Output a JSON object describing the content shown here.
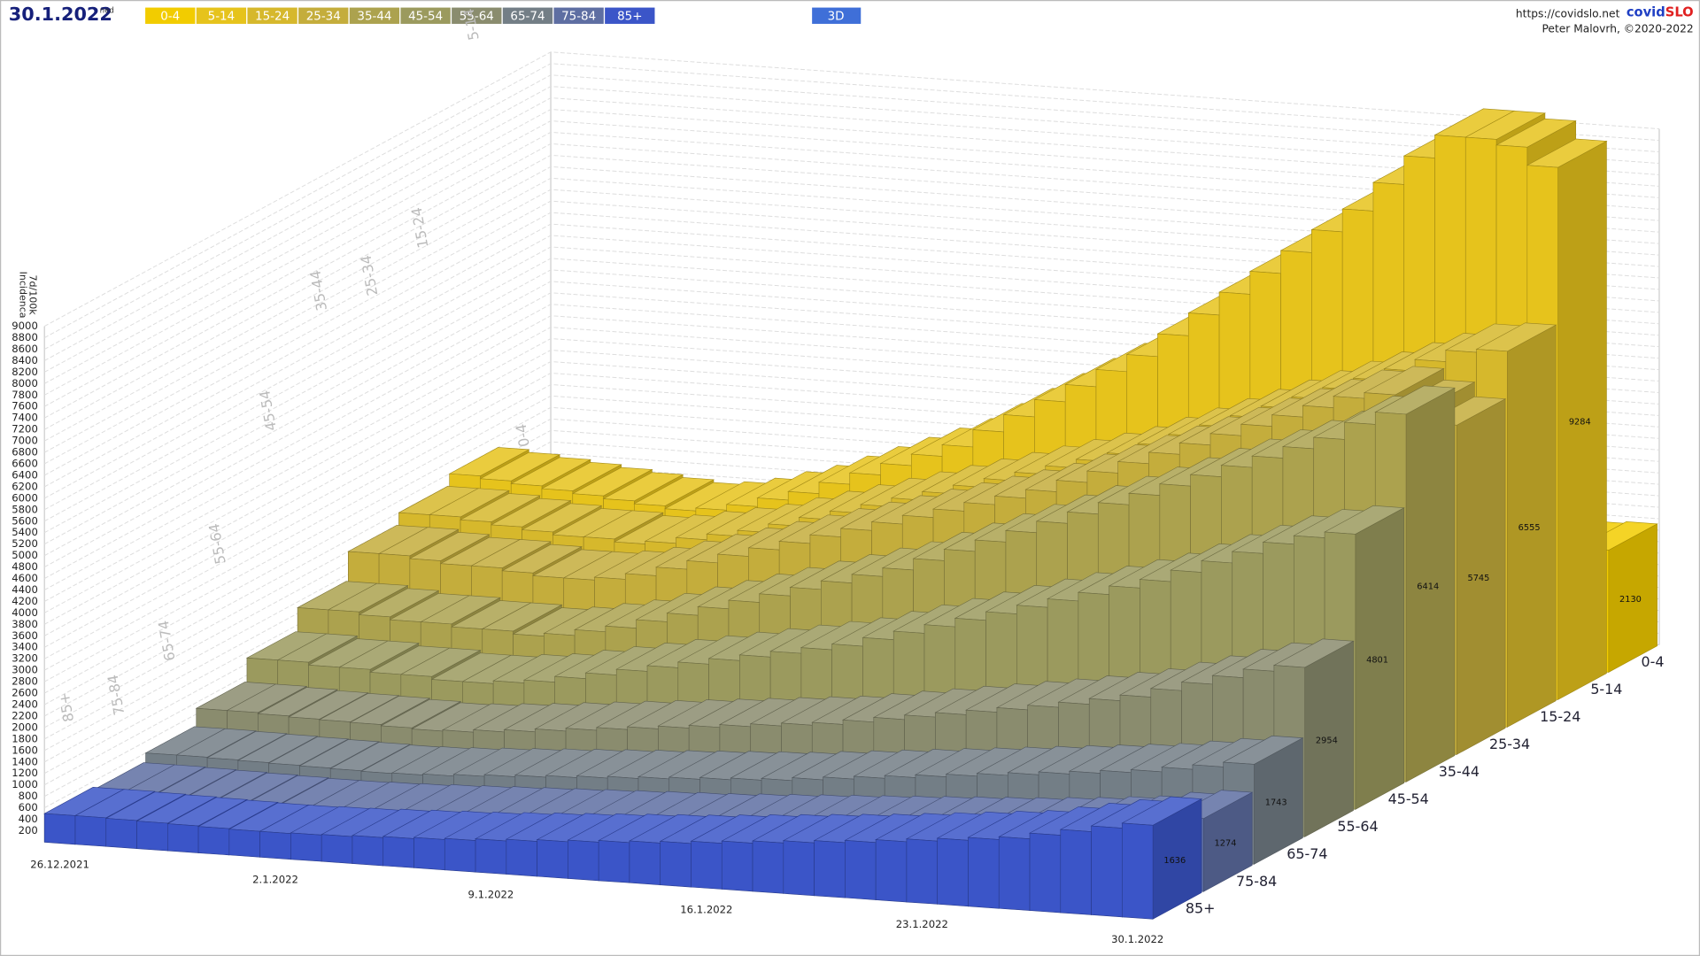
{
  "header": {
    "date": "30.1.2022",
    "weekday": "ned",
    "button_3d": "3D",
    "site": "https://covidslo.net",
    "brand": [
      "covid",
      "SLO"
    ],
    "author": "Peter Malovrh, ©2020-2022"
  },
  "chart_data": {
    "type": "bar3d",
    "ylabel": [
      "7d/100k",
      "Incidenca"
    ],
    "categories": [
      "26.12.2021",
      null,
      null,
      null,
      null,
      null,
      null,
      "2.1.2022",
      null,
      null,
      null,
      null,
      null,
      null,
      "9.1.2022",
      null,
      null,
      null,
      null,
      null,
      null,
      "16.1.2022",
      null,
      null,
      null,
      null,
      null,
      null,
      "23.1.2022",
      null,
      null,
      null,
      null,
      null,
      null,
      "30.1.2022"
    ],
    "ylim": [
      0,
      9000
    ],
    "yticks": [
      200,
      400,
      600,
      800,
      1000,
      1200,
      1400,
      1600,
      1800,
      2000,
      2200,
      2400,
      2600,
      2800,
      3000,
      3200,
      3400,
      3600,
      3800,
      4000,
      4200,
      4400,
      4600,
      4800,
      5000,
      5200,
      5400,
      5600,
      5800,
      6000,
      6200,
      6400,
      6600,
      6800,
      7000,
      7200,
      7400,
      7600,
      7800,
      8000,
      8200,
      8400,
      8600,
      8800,
      9000
    ],
    "grid": true,
    "series": [
      {
        "name": "0-4",
        "color": "#f2cc00",
        "values": [
          900,
          880,
          870,
          860,
          850,
          840,
          830,
          820,
          830,
          850,
          870,
          900,
          950,
          1000,
          1050,
          1100,
          1150,
          1200,
          1250,
          1300,
          1350,
          1400,
          1450,
          1500,
          1550,
          1600,
          1650,
          1700,
          1750,
          1800,
          1850,
          1900,
          1950,
          2050,
          2100,
          2130
        ]
      },
      {
        "name": "5-14",
        "color": "#e6c31c",
        "values": [
          2600,
          2550,
          2500,
          2450,
          2400,
          2350,
          2300,
          2250,
          2300,
          2400,
          2550,
          2700,
          2900,
          3100,
          3300,
          3500,
          3700,
          4000,
          4300,
          4600,
          4900,
          5200,
          5500,
          5900,
          6300,
          6700,
          7100,
          7500,
          7900,
          8300,
          8800,
          9300,
          9700,
          9700,
          9600,
          9284
        ]
      },
      {
        "name": "15-24",
        "color": "#d6b82c",
        "values": [
          2400,
          2400,
          2350,
          2300,
          2250,
          2200,
          2200,
          2150,
          2200,
          2300,
          2400,
          2500,
          2650,
          2800,
          2950,
          3100,
          3250,
          3400,
          3550,
          3700,
          3850,
          4000,
          4150,
          4300,
          4500,
          4700,
          4900,
          5100,
          5300,
          5500,
          5700,
          5900,
          6100,
          6300,
          6500,
          6555
        ]
      },
      {
        "name": "25-34",
        "color": "#c4ad3c",
        "values": [
          2200,
          2200,
          2150,
          2100,
          2100,
          2050,
          2000,
          2000,
          2050,
          2150,
          2300,
          2450,
          2600,
          2750,
          2900,
          3050,
          3200,
          3350,
          3500,
          3650,
          3800,
          3950,
          4100,
          4300,
          4500,
          4700,
          4900,
          5100,
          5300,
          5500,
          5700,
          5900,
          6100,
          6200,
          6000,
          5745
        ]
      },
      {
        "name": "35-44",
        "color": "#aca24e",
        "values": [
          1700,
          1700,
          1650,
          1600,
          1600,
          1550,
          1550,
          1500,
          1550,
          1650,
          1750,
          1900,
          2050,
          2200,
          2350,
          2500,
          2650,
          2800,
          2950,
          3100,
          3300,
          3500,
          3700,
          3900,
          4100,
          4300,
          4500,
          4700,
          4900,
          5100,
          5300,
          5500,
          5700,
          5900,
          6200,
          6414
        ]
      },
      {
        "name": "45-54",
        "color": "#9b9a5e",
        "values": [
          1300,
          1300,
          1250,
          1250,
          1200,
          1200,
          1150,
          1150,
          1200,
          1250,
          1350,
          1450,
          1550,
          1650,
          1750,
          1850,
          1950,
          2050,
          2150,
          2250,
          2400,
          2550,
          2700,
          2850,
          3000,
          3150,
          3300,
          3450,
          3600,
          3750,
          3950,
          4150,
          4350,
          4550,
          4700,
          4801
        ]
      },
      {
        "name": "55-64",
        "color": "#8a8c6e",
        "values": [
          900,
          900,
          880,
          860,
          850,
          840,
          820,
          800,
          820,
          860,
          900,
          950,
          1000,
          1050,
          1100,
          1150,
          1200,
          1250,
          1300,
          1350,
          1400,
          1480,
          1560,
          1640,
          1720,
          1800,
          1880,
          1960,
          2050,
          2150,
          2250,
          2400,
          2550,
          2700,
          2850,
          2954
        ]
      },
      {
        "name": "65-74",
        "color": "#737e86",
        "values": [
          600,
          600,
          590,
          580,
          570,
          560,
          550,
          540,
          550,
          570,
          600,
          630,
          660,
          690,
          720,
          750,
          780,
          810,
          840,
          870,
          900,
          950,
          1000,
          1050,
          1100,
          1150,
          1200,
          1250,
          1300,
          1350,
          1400,
          1450,
          1500,
          1580,
          1660,
          1743
        ]
      },
      {
        "name": "75-84",
        "color": "#5e6ea2",
        "values": [
          450,
          450,
          440,
          430,
          420,
          410,
          400,
          400,
          410,
          420,
          440,
          460,
          480,
          500,
          520,
          540,
          560,
          580,
          600,
          620,
          650,
          680,
          710,
          740,
          770,
          800,
          830,
          860,
          890,
          920,
          960,
          1000,
          1050,
          1100,
          1200,
          1274
        ]
      },
      {
        "name": "85+",
        "color": "#3b55c8",
        "values": [
          500,
          500,
          490,
          480,
          470,
          460,
          450,
          450,
          460,
          470,
          490,
          510,
          530,
          550,
          580,
          610,
          640,
          670,
          700,
          730,
          760,
          800,
          840,
          880,
          920,
          960,
          1000,
          1050,
          1100,
          1150,
          1200,
          1250,
          1350,
          1450,
          1550,
          1636
        ]
      }
    ]
  }
}
